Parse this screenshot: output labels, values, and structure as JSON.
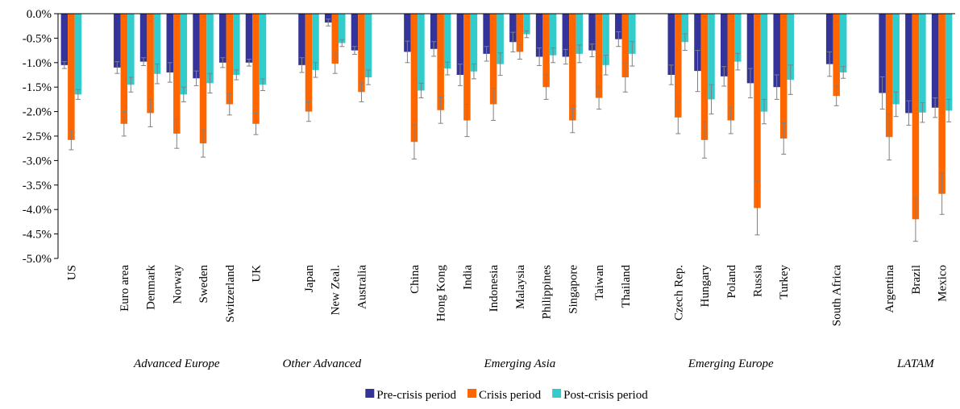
{
  "chart_data": {
    "type": "bar",
    "categories": [
      "US",
      null,
      "Euro area",
      "Denmark",
      "Norway",
      "Sweden",
      "Switzerland",
      "UK",
      null,
      "Japan",
      "New Zeal.",
      "Australia",
      null,
      "China",
      "Hong Kong",
      "India",
      "Indonesia",
      "Malaysia",
      "Philippines",
      "Singapore",
      "Taiwan",
      "Thailand",
      null,
      "Czech Rep.",
      "Hungary",
      "Poland",
      "Russia",
      "Turkey",
      null,
      "South Africa",
      null,
      "Argentina",
      "Brazil",
      "Mexico"
    ],
    "groups": [
      {
        "label": "Advanced Europe",
        "span": [
          2,
          6
        ]
      },
      {
        "label": "Other Advanced",
        "span": [
          8,
          11
        ]
      },
      {
        "label": "Emerging Asia",
        "span": [
          13,
          21
        ]
      },
      {
        "label": "Emerging Europe",
        "span": [
          23,
          27
        ]
      },
      {
        "label": "LATAM",
        "span": [
          31,
          33
        ]
      }
    ],
    "series": [
      {
        "name": "Pre-crisis period",
        "color": "#333399",
        "values": [
          -1.05,
          null,
          -1.1,
          -0.98,
          -1.2,
          -1.32,
          -1.0,
          -1.0,
          null,
          -1.05,
          -0.18,
          -0.75,
          null,
          -0.78,
          -0.72,
          -1.25,
          -0.82,
          -0.58,
          -0.88,
          -0.88,
          -0.75,
          -0.52,
          null,
          -1.25,
          -1.17,
          -1.28,
          -1.42,
          -1.5,
          null,
          -1.03,
          null,
          -1.62,
          -2.03,
          -1.92
        ],
        "errors": [
          0.07,
          null,
          0.12,
          0.08,
          0.2,
          0.15,
          0.1,
          0.07,
          null,
          0.15,
          0.07,
          0.08,
          null,
          0.22,
          0.15,
          0.22,
          0.15,
          0.2,
          0.18,
          0.15,
          0.13,
          0.15,
          null,
          0.2,
          0.42,
          0.2,
          0.3,
          0.25,
          null,
          0.25,
          null,
          0.33,
          0.25,
          0.2
        ]
      },
      {
        "name": "Crisis period",
        "color": "#ff6600",
        "values": [
          -2.58,
          null,
          -2.25,
          -2.03,
          -2.45,
          -2.65,
          -1.85,
          -2.25,
          null,
          -2.0,
          -1.02,
          -1.6,
          null,
          -2.62,
          -1.97,
          -2.18,
          -1.85,
          -0.78,
          -1.5,
          -2.18,
          -1.72,
          -1.3,
          null,
          -2.12,
          -2.58,
          -2.18,
          -3.97,
          -2.55,
          null,
          -1.68,
          null,
          -2.52,
          -4.2,
          -3.68
        ],
        "errors": [
          0.2,
          null,
          0.25,
          0.28,
          0.3,
          0.28,
          0.22,
          0.22,
          null,
          0.2,
          0.2,
          0.2,
          null,
          0.35,
          0.27,
          0.33,
          0.33,
          0.15,
          0.25,
          0.25,
          0.23,
          0.3,
          null,
          0.33,
          0.37,
          0.27,
          0.55,
          0.32,
          null,
          0.2,
          null,
          0.47,
          0.45,
          0.42
        ]
      },
      {
        "name": "Post-crisis period",
        "color": "#33cccc",
        "values": [
          -1.65,
          null,
          -1.45,
          -1.23,
          -1.65,
          -1.42,
          -1.25,
          -1.45,
          null,
          -1.15,
          -0.6,
          -1.3,
          null,
          -1.57,
          -1.12,
          -1.18,
          -1.03,
          -0.42,
          -0.85,
          -0.82,
          -1.05,
          -0.82,
          null,
          -0.58,
          -1.75,
          -0.98,
          -2.0,
          -1.35,
          null,
          -1.2,
          null,
          -1.85,
          -2.02,
          -1.98
        ],
        "errors": [
          0.1,
          null,
          0.15,
          0.2,
          0.15,
          0.2,
          0.1,
          0.12,
          null,
          0.15,
          0.07,
          0.15,
          null,
          0.15,
          0.13,
          0.15,
          0.23,
          0.07,
          0.15,
          0.18,
          0.2,
          0.25,
          null,
          0.17,
          0.3,
          0.17,
          0.25,
          0.3,
          null,
          0.12,
          null,
          0.25,
          0.2,
          0.23
        ]
      }
    ],
    "ylim": [
      -5.0,
      0.0
    ],
    "yticks": [
      {
        "value": 0.0,
        "label": "0.0%"
      },
      {
        "value": -0.5,
        "label": "-0.5%"
      },
      {
        "value": -1.0,
        "label": "-1.0%"
      },
      {
        "value": -1.5,
        "label": "-1.5%"
      },
      {
        "value": -2.0,
        "label": "-2.0%"
      },
      {
        "value": -2.5,
        "label": "-2.5%"
      },
      {
        "value": -3.0,
        "label": "-3.0%"
      },
      {
        "value": -3.5,
        "label": "-3.5%"
      },
      {
        "value": -4.0,
        "label": "-4.0%"
      },
      {
        "value": -4.5,
        "label": "-4.5%"
      },
      {
        "value": -5.0,
        "label": "-5.0%"
      }
    ],
    "error_color": "#808080",
    "legend": "bottom"
  }
}
